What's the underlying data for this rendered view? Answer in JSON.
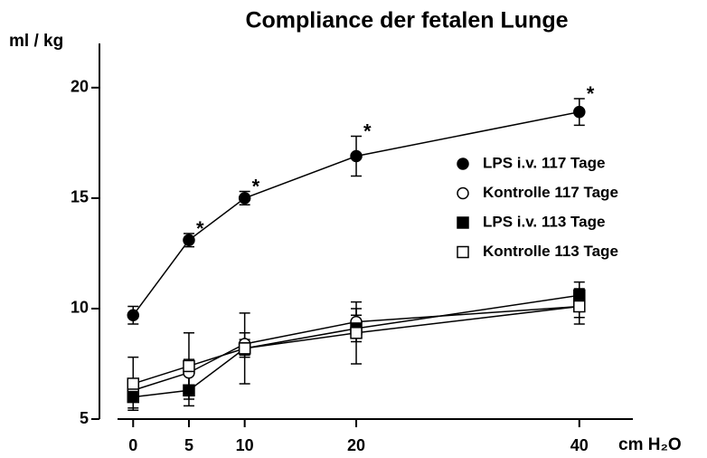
{
  "chart_data": {
    "type": "line",
    "title": "Compliance der fetalen Lunge",
    "ylabel": "ml / kg",
    "xlabel": "cm H₂O",
    "x": [
      0,
      5,
      10,
      20,
      40
    ],
    "series": [
      {
        "name": "LPS i.v. 117 Tage",
        "color": "#000000",
        "marker": "circle",
        "filled": true,
        "values": [
          9.7,
          13.1,
          15.0,
          16.9,
          18.9
        ],
        "errors": [
          0.4,
          0.3,
          0.3,
          0.9,
          0.6
        ],
        "annotations": [
          null,
          "*",
          "*",
          "*",
          "*"
        ]
      },
      {
        "name": "Kontrolle 117 Tage",
        "color": "#000000",
        "marker": "circle",
        "filled": false,
        "values": [
          6.3,
          7.1,
          8.4,
          9.4,
          10.1
        ],
        "errors": [
          0.5,
          0.6,
          0.5,
          0.6,
          0.5
        ]
      },
      {
        "name": "LPS i.v. 113 Tage",
        "color": "#000000",
        "marker": "square",
        "filled": true,
        "values": [
          6.0,
          6.3,
          8.2,
          9.1,
          10.6
        ],
        "errors": [
          0.5,
          0.7,
          0.4,
          0.6,
          0.6
        ]
      },
      {
        "name": "Kontrolle 113 Tage",
        "color": "#000000",
        "marker": "square",
        "filled": false,
        "values": [
          6.6,
          7.4,
          8.2,
          8.9,
          10.1
        ],
        "errors": [
          1.2,
          1.5,
          1.6,
          1.4,
          0.8
        ]
      }
    ],
    "xlim": [
      -1.4,
      44.8
    ],
    "xticks": [
      0,
      5,
      10,
      20,
      40
    ],
    "ylim": [
      5,
      22
    ],
    "yticks": [
      5,
      10,
      15,
      20
    ],
    "grid": false,
    "legend": "right"
  }
}
